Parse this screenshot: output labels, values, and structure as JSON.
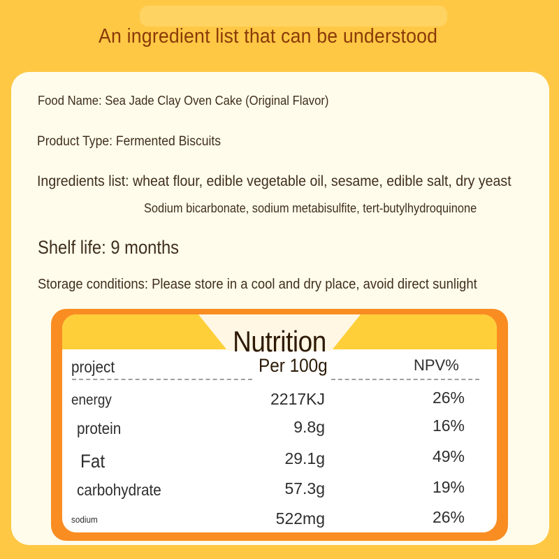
{
  "headline": "An ingredient list that can be understood",
  "product": {
    "food_name_label": "Food Name: ",
    "food_name": "Sea Jade Clay Oven Cake (Original Flavor)",
    "product_type_label": "Product Type: ",
    "product_type": "Fermented Biscuits",
    "ingredients_label": "Ingredients list: ",
    "ingredients_line1": "wheat flour, edible vegetable oil, sesame, edible salt, dry yeast",
    "ingredients_line2": "Sodium bicarbonate, sodium metabisulfite, tert-butylhydroquinone",
    "shelf_life_label": "Shelf life: ",
    "shelf_life": "9 months",
    "storage_label": "Storage conditions: ",
    "storage": "Please store in a cool and dry place, avoid direct sunlight"
  },
  "nutrition": {
    "title": "Nutrition",
    "headers": {
      "item": "project",
      "per": "Per 100g",
      "npv": "NPV%"
    },
    "rows": [
      {
        "name": "energy",
        "per": "2217KJ",
        "npv": "26%"
      },
      {
        "name": "protein",
        "per": "9.8g",
        "npv": "16%"
      },
      {
        "name": "Fat",
        "per": "29.1g",
        "npv": "49%"
      },
      {
        "name": "carbohydrate",
        "per": "57.3g",
        "npv": "19%"
      },
      {
        "name": "sodium",
        "per": "522mg",
        "npv": "26%"
      }
    ]
  },
  "colors": {
    "background": "#fec845",
    "card": "#fffcec",
    "frame": "#f98d22",
    "banner": "#ffcf39",
    "headline_text": "#8a3a08"
  }
}
